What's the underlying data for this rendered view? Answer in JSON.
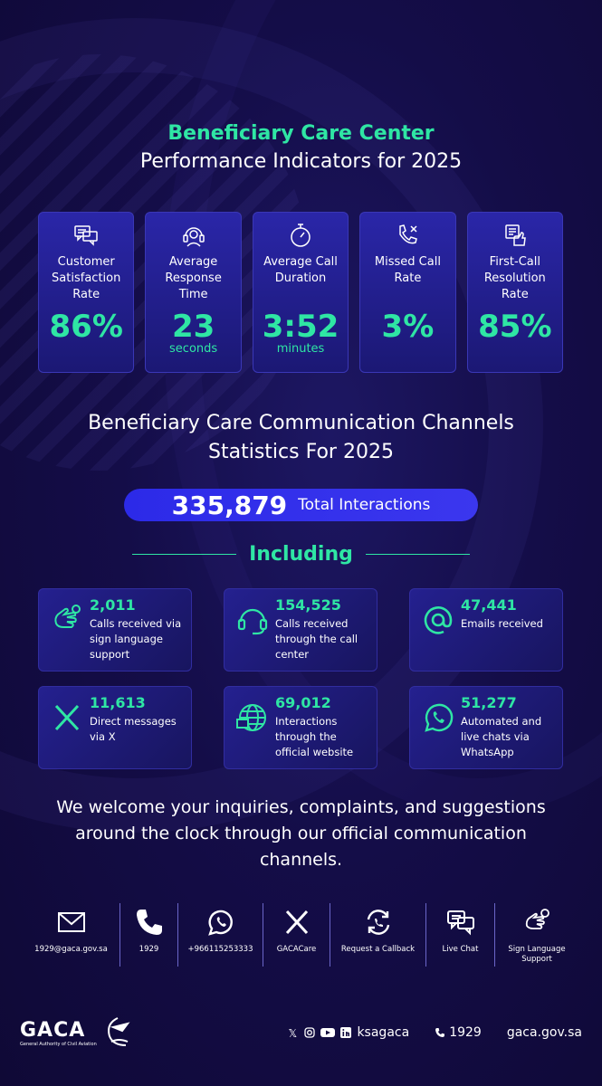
{
  "header": {
    "title_line1": "Beneficiary Care Center",
    "title_line2": "Performance Indicators for 2025"
  },
  "kpis": [
    {
      "icon": "chat-bubbles-icon",
      "label": "Customer Satisfaction Rate",
      "value": "86%",
      "unit": ""
    },
    {
      "icon": "headset-agent-icon",
      "label": "Average Response Time",
      "value": "23",
      "unit": "seconds"
    },
    {
      "icon": "stopwatch-icon",
      "label": "Average Call Duration",
      "value": "3:52",
      "unit": "minutes"
    },
    {
      "icon": "missed-call-icon",
      "label": "Missed Call Rate",
      "value": "3%",
      "unit": ""
    },
    {
      "icon": "resolution-icon",
      "label": "First-Call Resolution Rate",
      "value": "85%",
      "unit": ""
    }
  ],
  "channels_section": {
    "title_line1": "Beneficiary Care Communication Channels",
    "title_line2": "Statistics For 2025",
    "total_number": "335,879",
    "total_label": "Total Interactions",
    "including": "Including"
  },
  "cards": [
    {
      "icon": "sign-language-icon",
      "number": "2,011",
      "text": "Calls received via sign language support"
    },
    {
      "icon": "headset-icon",
      "number": "154,525",
      "text": "Calls received through the call center"
    },
    {
      "icon": "at-sign-icon",
      "number": "47,441",
      "text": "Emails received"
    },
    {
      "icon": "x-logo-icon",
      "number": "11,613",
      "text": "Direct messages via X"
    },
    {
      "icon": "website-icon",
      "number": "69,012",
      "text": "Interactions through the official website"
    },
    {
      "icon": "whatsapp-icon",
      "number": "51,277",
      "text": "Automated and live chats via WhatsApp"
    }
  ],
  "welcome_text": "We welcome your inquiries, complaints, and suggestions around the clock through our official communication channels.",
  "contact_channels": [
    {
      "icon": "mail-icon",
      "label": "1929@gaca.gov.sa"
    },
    {
      "icon": "phone-icon",
      "label": "1929"
    },
    {
      "icon": "whatsapp-icon",
      "label": "+966115253333"
    },
    {
      "icon": "x-logo-icon",
      "label": "GACACare"
    },
    {
      "icon": "callback-icon",
      "label": "Request a Callback"
    },
    {
      "icon": "live-chat-icon",
      "label": "Live Chat"
    },
    {
      "icon": "sign-language-icon",
      "label": "Sign Language Support"
    }
  ],
  "footer": {
    "logo_text": "GACA",
    "logo_subtitle": "General Authority of Civil Aviation",
    "social_handle": "ksagaca",
    "phone": "1929",
    "website": "gaca.gov.sa"
  },
  "colors": {
    "background": "#120b3f",
    "accent": "#2fe6a4",
    "pill": "#2c2ae8"
  }
}
